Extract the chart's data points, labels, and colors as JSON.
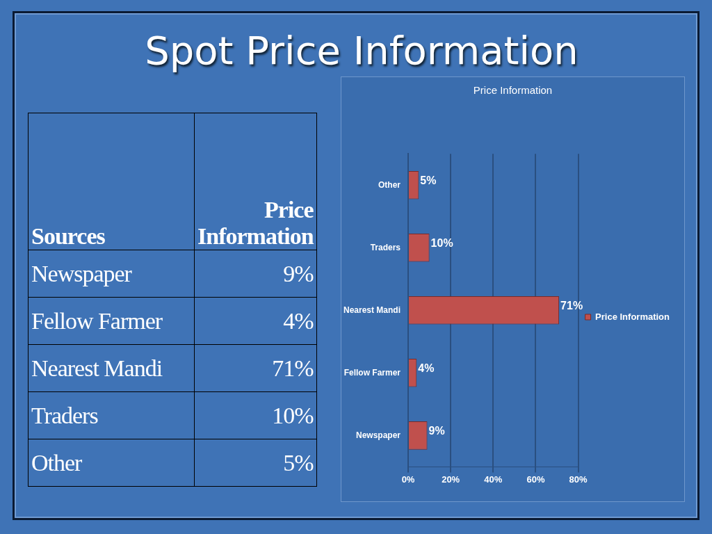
{
  "chart_data": {
    "type": "bar",
    "orientation": "horizontal",
    "title": "Spot Price Information",
    "subtitle": "Price Information",
    "annotations": [
      "Sources"
    ],
    "categories": [
      "Other",
      "Traders",
      "Nearest Mandi",
      "Fellow Farmer",
      "Newspaper"
    ],
    "series": [
      {
        "name": "Price Information",
        "color": "#c0504d",
        "values": [
          5,
          10,
          71,
          4,
          9
        ],
        "value_labels": [
          "5%",
          "10%",
          "71%",
          "4%",
          "9%"
        ]
      }
    ],
    "xlim": [
      0,
      80
    ],
    "xticks": [
      {
        "value": 0,
        "label": "0%"
      },
      {
        "value": 20,
        "label": "20%"
      },
      {
        "value": 40,
        "label": "40%"
      },
      {
        "value": 60,
        "label": "60%"
      },
      {
        "value": 80,
        "label": "80%"
      }
    ],
    "grid": "x",
    "legend": "right"
  }
}
